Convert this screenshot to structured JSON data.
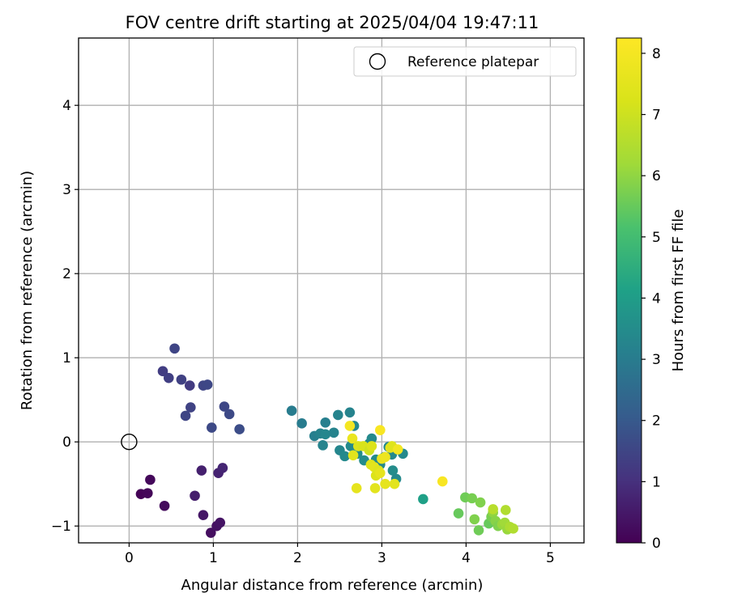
{
  "chart_data": {
    "type": "scatter",
    "title": "FOV centre drift starting at 2025/04/04 19:47:11",
    "xlabel": "Angular distance from reference (arcmin)",
    "ylabel": "Rotation from reference (arcmin)",
    "xlim": [
      -0.6,
      5.4
    ],
    "ylim": [
      -1.2,
      4.8
    ],
    "xticks": [
      0,
      1,
      2,
      3,
      4,
      5
    ],
    "yticks": [
      -1,
      0,
      1,
      2,
      3,
      4
    ],
    "grid": true,
    "legend": {
      "placement": "top-right",
      "entries": [
        "Reference platepar"
      ]
    },
    "reference_point": {
      "name": "Reference platepar",
      "x": 0,
      "y": 0
    },
    "colorbar": {
      "label": "Hours from first FF file",
      "range": [
        0,
        8.25
      ],
      "ticks": [
        0,
        1,
        2,
        3,
        4,
        5,
        6,
        7,
        8
      ],
      "colormap": "viridis"
    },
    "series": [
      {
        "points": [
          [
            0.14,
            -0.62,
            0.05
          ],
          [
            0.22,
            -0.61,
            0.1
          ],
          [
            0.25,
            -0.45,
            0.15
          ],
          [
            0.42,
            -0.76,
            0.2
          ],
          [
            0.78,
            -0.64,
            0.6
          ],
          [
            0.86,
            -0.34,
            0.65
          ],
          [
            0.88,
            -0.87,
            0.45
          ],
          [
            0.97,
            -1.08,
            0.3
          ],
          [
            1.04,
            -1.0,
            0.35
          ],
          [
            1.08,
            -0.96,
            0.4
          ],
          [
            1.06,
            -0.37,
            0.7
          ],
          [
            1.11,
            -0.31,
            0.75
          ],
          [
            0.54,
            1.11,
            1.5
          ],
          [
            0.4,
            0.84,
            1.3
          ],
          [
            0.47,
            0.76,
            1.35
          ],
          [
            0.62,
            0.74,
            1.4
          ],
          [
            0.72,
            0.67,
            1.25
          ],
          [
            0.88,
            0.67,
            1.5
          ],
          [
            0.93,
            0.68,
            1.55
          ],
          [
            0.73,
            0.41,
            1.45
          ],
          [
            0.67,
            0.31,
            1.5
          ],
          [
            0.98,
            0.17,
            1.6
          ],
          [
            1.13,
            0.42,
            1.55
          ],
          [
            1.19,
            0.33,
            1.6
          ],
          [
            1.31,
            0.15,
            1.7
          ],
          [
            1.93,
            0.37,
            3.0
          ],
          [
            2.05,
            0.22,
            3.0
          ],
          [
            2.2,
            0.07,
            3.1
          ],
          [
            2.27,
            0.1,
            3.2
          ],
          [
            2.33,
            0.23,
            3.1
          ],
          [
            2.3,
            -0.04,
            3.2
          ],
          [
            2.33,
            0.09,
            3.3
          ],
          [
            2.43,
            0.11,
            3.2
          ],
          [
            2.48,
            0.32,
            3.2
          ],
          [
            2.5,
            -0.1,
            3.3
          ],
          [
            2.56,
            -0.17,
            3.4
          ],
          [
            2.62,
            0.35,
            3.2
          ],
          [
            2.67,
            0.19,
            3.4
          ],
          [
            2.63,
            -0.05,
            3.4
          ],
          [
            2.71,
            -0.14,
            3.5
          ],
          [
            2.79,
            -0.22,
            3.5
          ],
          [
            2.85,
            -0.02,
            3.3
          ],
          [
            2.88,
            0.04,
            3.4
          ],
          [
            2.93,
            -0.21,
            3.5
          ],
          [
            2.98,
            -0.27,
            3.4
          ],
          [
            3.03,
            -0.18,
            3.5
          ],
          [
            3.08,
            -0.06,
            3.4
          ],
          [
            3.12,
            -0.15,
            3.4
          ],
          [
            3.13,
            -0.34,
            3.5
          ],
          [
            3.17,
            -0.44,
            3.4
          ],
          [
            3.25,
            -0.14,
            3.4
          ],
          [
            3.49,
            -0.68,
            4.1
          ],
          [
            3.91,
            -0.85,
            5.5
          ],
          [
            3.99,
            -0.66,
            5.6
          ],
          [
            4.07,
            -0.67,
            5.7
          ],
          [
            4.1,
            -0.92,
            5.8
          ],
          [
            4.15,
            -1.05,
            5.6
          ],
          [
            4.17,
            -0.72,
            5.8
          ],
          [
            4.27,
            -0.97,
            5.5
          ],
          [
            4.3,
            -0.89,
            5.7
          ],
          [
            4.32,
            -0.84,
            6.0
          ],
          [
            4.35,
            -0.94,
            5.9
          ],
          [
            4.38,
            -1.0,
            5.8
          ],
          [
            4.43,
            -0.98,
            6.1
          ],
          [
            4.46,
            -0.96,
            6.2
          ],
          [
            4.49,
            -1.04,
            6.1
          ],
          [
            4.52,
            -1.01,
            6.4
          ],
          [
            4.56,
            -1.03,
            6.5
          ],
          [
            4.47,
            -0.81,
            6.5
          ],
          [
            4.32,
            -0.8,
            6.6
          ],
          [
            2.65,
            0.04,
            7.7
          ],
          [
            2.72,
            -0.05,
            7.3
          ],
          [
            2.78,
            -0.05,
            7.2
          ],
          [
            2.85,
            -0.1,
            7.0
          ],
          [
            2.88,
            -0.05,
            7.3
          ],
          [
            2.87,
            -0.27,
            7.4
          ],
          [
            2.91,
            -0.3,
            7.5
          ],
          [
            2.93,
            -0.4,
            7.3
          ],
          [
            2.96,
            -0.34,
            7.4
          ],
          [
            2.98,
            -0.37,
            7.6
          ],
          [
            3.0,
            -0.2,
            7.7
          ],
          [
            3.04,
            -0.18,
            7.8
          ],
          [
            3.1,
            -0.07,
            7.5
          ],
          [
            3.12,
            -0.05,
            7.4
          ],
          [
            3.19,
            -0.09,
            7.9
          ],
          [
            2.66,
            -0.16,
            7.5
          ],
          [
            2.7,
            -0.55,
            7.6
          ],
          [
            2.92,
            -0.55,
            7.5
          ],
          [
            3.04,
            -0.5,
            7.6
          ],
          [
            3.15,
            -0.5,
            7.5
          ],
          [
            2.62,
            0.19,
            8.0
          ],
          [
            2.98,
            0.14,
            8.1
          ],
          [
            3.72,
            -0.47,
            8.1
          ]
        ]
      }
    ]
  }
}
